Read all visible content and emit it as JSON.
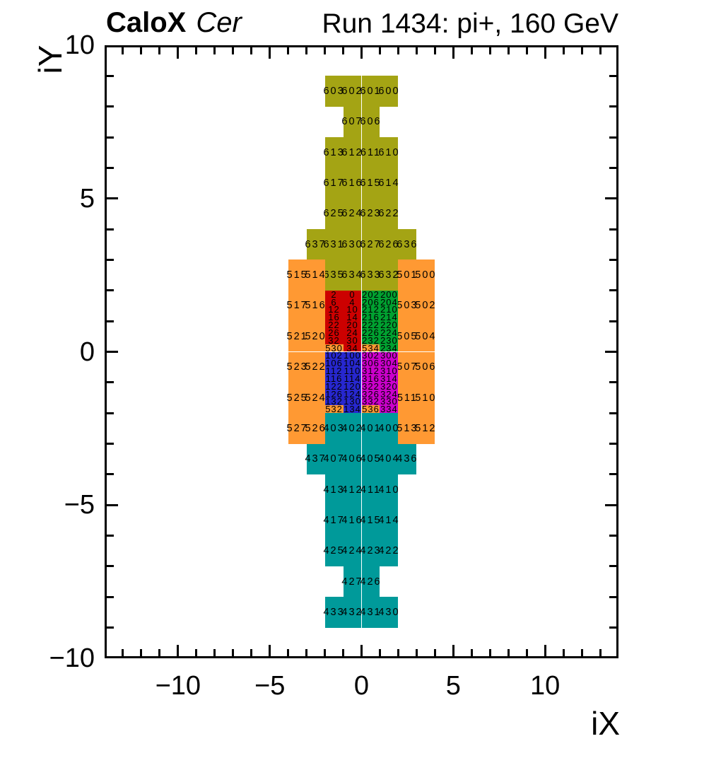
{
  "header": {
    "left_title_bold": "CaloX",
    "left_title_italic": "Cer",
    "right_title": "Run 1434: pi+, 160 GeV"
  },
  "axes": {
    "x": {
      "title": "iX",
      "range": [
        -14,
        14
      ],
      "minor_step": 1,
      "major_step": 5,
      "ticks": [
        {
          "v": -10,
          "t": "−10"
        },
        {
          "v": -5,
          "t": "−5"
        },
        {
          "v": 0,
          "t": "0"
        },
        {
          "v": 5,
          "t": "5"
        },
        {
          "v": 10,
          "t": "10"
        }
      ]
    },
    "y": {
      "title": "iY",
      "range": [
        -10,
        10
      ],
      "minor_step": 1,
      "major_step": 5,
      "ticks": [
        {
          "v": 10,
          "t": "10"
        },
        {
          "v": 5,
          "t": "5"
        },
        {
          "v": 0,
          "t": "0"
        },
        {
          "v": -5,
          "t": "−5"
        },
        {
          "v": -10,
          "t": "−10"
        }
      ]
    }
  },
  "chart_data": {
    "type": "heatmap",
    "title": "Run 1434: pi+, 160 GeV",
    "subtitle": "CaloX Cer detector cell map",
    "xlabel": "iX",
    "ylabel": "iY",
    "xlim": [
      -14,
      14
    ],
    "ylim": [
      -10,
      10
    ],
    "grid": false,
    "colors": {
      "olive": "#a4a414",
      "orange": "#ff9933",
      "red": "#cc0000",
      "green": "#00a130",
      "blue": "#2727cf",
      "magenta": "#cc00cc",
      "teal": "#009a9a"
    },
    "regions": [
      {
        "name": "upper-tail-olive",
        "color": "olive",
        "cell_w": 1,
        "cell_h": 1,
        "rows": [
          {
            "y": 8,
            "cells": [
              [
                "603",
                -2
              ],
              [
                "602",
                -1
              ],
              [
                "601",
                0
              ],
              [
                "600",
                1
              ]
            ]
          },
          {
            "y": 7,
            "cells": [
              [
                "607",
                -1
              ],
              [
                "606",
                0
              ]
            ]
          },
          {
            "y": 6,
            "cells": [
              [
                "613",
                -2
              ],
              [
                "612",
                -1
              ],
              [
                "611",
                0
              ],
              [
                "610",
                1
              ]
            ]
          },
          {
            "y": 5,
            "cells": [
              [
                "617",
                -2
              ],
              [
                "616",
                -1
              ],
              [
                "615",
                0
              ],
              [
                "614",
                1
              ]
            ]
          },
          {
            "y": 4,
            "cells": [
              [
                "625",
                -2
              ],
              [
                "624",
                -1
              ],
              [
                "623",
                0
              ],
              [
                "622",
                1
              ]
            ]
          },
          {
            "y": 3,
            "cells": [
              [
                "637",
                -3
              ],
              [
                "631",
                -2
              ],
              [
                "630",
                -1
              ],
              [
                "627",
                0
              ],
              [
                "626",
                1
              ],
              [
                "636",
                2
              ]
            ]
          },
          {
            "y": 2,
            "cells": [
              [
                "635",
                -2
              ],
              [
                "634",
                -1
              ],
              [
                "633",
                0
              ],
              [
                "632",
                1
              ]
            ]
          }
        ]
      },
      {
        "name": "ring-orange-left",
        "color": "orange",
        "cell_w": 1,
        "cell_h": 1,
        "rows": [
          {
            "y": 2,
            "cells": [
              [
                "515",
                -4
              ],
              [
                "514",
                -3
              ]
            ]
          },
          {
            "y": 1,
            "cells": [
              [
                "517",
                -4
              ],
              [
                "516",
                -3
              ]
            ]
          },
          {
            "y": 0,
            "cells": [
              [
                "521",
                -4
              ],
              [
                "520",
                -3
              ]
            ]
          },
          {
            "y": -1,
            "cells": [
              [
                "523",
                -4
              ],
              [
                "522",
                -3
              ]
            ]
          },
          {
            "y": -2,
            "cells": [
              [
                "525",
                -4
              ],
              [
                "524",
                -3
              ]
            ]
          },
          {
            "y": -3,
            "cells": [
              [
                "527",
                -4
              ],
              [
                "526",
                -3
              ]
            ]
          }
        ]
      },
      {
        "name": "ring-orange-right",
        "color": "orange",
        "cell_w": 1,
        "cell_h": 1,
        "rows": [
          {
            "y": 2,
            "cells": [
              [
                "501",
                2
              ],
              [
                "500",
                3
              ]
            ]
          },
          {
            "y": 1,
            "cells": [
              [
                "503",
                2
              ],
              [
                "502",
                3
              ]
            ]
          },
          {
            "y": 0,
            "cells": [
              [
                "505",
                2
              ],
              [
                "504",
                3
              ]
            ]
          },
          {
            "y": -1,
            "cells": [
              [
                "507",
                2
              ],
              [
                "506",
                3
              ]
            ]
          },
          {
            "y": -2,
            "cells": [
              [
                "511",
                2
              ],
              [
                "510",
                3
              ]
            ]
          },
          {
            "y": -3,
            "cells": [
              [
                "513",
                2
              ],
              [
                "512",
                3
              ]
            ]
          }
        ]
      },
      {
        "name": "core-red",
        "color": "red",
        "cell_w": 1,
        "cell_h": 0.25,
        "rows": [
          {
            "y": 1.75,
            "cells": [
              [
                "2",
                -2
              ],
              [
                "0",
                -1
              ]
            ]
          },
          {
            "y": 1.5,
            "cells": [
              [
                "6",
                -2
              ],
              [
                "4",
                -1
              ]
            ]
          },
          {
            "y": 1.25,
            "cells": [
              [
                "12",
                -2
              ],
              [
                "10",
                -1
              ]
            ]
          },
          {
            "y": 1.0,
            "cells": [
              [
                "16",
                -2
              ],
              [
                "14",
                -1
              ]
            ]
          },
          {
            "y": 0.75,
            "cells": [
              [
                "22",
                -2
              ],
              [
                "20",
                -1
              ]
            ]
          },
          {
            "y": 0.5,
            "cells": [
              [
                "26",
                -2
              ],
              [
                "24",
                -1
              ]
            ]
          },
          {
            "y": 0.25,
            "cells": [
              [
                "32",
                -2
              ],
              [
                "30",
                -1
              ]
            ]
          },
          {
            "y": 0,
            "cells": [
              [
                "530",
                -2,
                "orange"
              ],
              [
                "34",
                -1
              ]
            ]
          }
        ]
      },
      {
        "name": "core-green",
        "color": "green",
        "cell_w": 1,
        "cell_h": 0.25,
        "rows": [
          {
            "y": 1.75,
            "cells": [
              [
                "202",
                0
              ],
              [
                "200",
                1
              ]
            ]
          },
          {
            "y": 1.5,
            "cells": [
              [
                "206",
                0
              ],
              [
                "204",
                1
              ]
            ]
          },
          {
            "y": 1.25,
            "cells": [
              [
                "212",
                0
              ],
              [
                "210",
                1
              ]
            ]
          },
          {
            "y": 1.0,
            "cells": [
              [
                "216",
                0
              ],
              [
                "214",
                1
              ]
            ]
          },
          {
            "y": 0.75,
            "cells": [
              [
                "222",
                0
              ],
              [
                "220",
                1
              ]
            ]
          },
          {
            "y": 0.5,
            "cells": [
              [
                "226",
                0
              ],
              [
                "224",
                1
              ]
            ]
          },
          {
            "y": 0.25,
            "cells": [
              [
                "232",
                0
              ],
              [
                "230",
                1
              ]
            ]
          },
          {
            "y": 0,
            "cells": [
              [
                "534",
                0,
                "orange"
              ],
              [
                "234",
                1
              ]
            ]
          }
        ]
      },
      {
        "name": "core-blue",
        "color": "blue",
        "cell_w": 1,
        "cell_h": 0.25,
        "rows": [
          {
            "y": -0.25,
            "cells": [
              [
                "102",
                -2
              ],
              [
                "100",
                -1
              ]
            ]
          },
          {
            "y": -0.5,
            "cells": [
              [
                "106",
                -2
              ],
              [
                "104",
                -1
              ]
            ]
          },
          {
            "y": -0.75,
            "cells": [
              [
                "112",
                -2
              ],
              [
                "110",
                -1
              ]
            ]
          },
          {
            "y": -1.0,
            "cells": [
              [
                "116",
                -2
              ],
              [
                "114",
                -1
              ]
            ]
          },
          {
            "y": -1.25,
            "cells": [
              [
                "122",
                -2
              ],
              [
                "120",
                -1
              ]
            ]
          },
          {
            "y": -1.5,
            "cells": [
              [
                "126",
                -2
              ],
              [
                "124",
                -1
              ]
            ]
          },
          {
            "y": -1.75,
            "cells": [
              [
                "132",
                -2
              ],
              [
                "130",
                -1
              ]
            ]
          },
          {
            "y": -2,
            "cells": [
              [
                "532",
                -2,
                "orange"
              ],
              [
                "134",
                -1
              ]
            ]
          }
        ]
      },
      {
        "name": "core-magenta",
        "color": "magenta",
        "cell_w": 1,
        "cell_h": 0.25,
        "rows": [
          {
            "y": -0.25,
            "cells": [
              [
                "302",
                0
              ],
              [
                "300",
                1
              ]
            ]
          },
          {
            "y": -0.5,
            "cells": [
              [
                "306",
                0
              ],
              [
                "304",
                1
              ]
            ]
          },
          {
            "y": -0.75,
            "cells": [
              [
                "312",
                0
              ],
              [
                "310",
                1
              ]
            ]
          },
          {
            "y": -1.0,
            "cells": [
              [
                "316",
                0
              ],
              [
                "314",
                1
              ]
            ]
          },
          {
            "y": -1.25,
            "cells": [
              [
                "322",
                0
              ],
              [
                "320",
                1
              ]
            ]
          },
          {
            "y": -1.5,
            "cells": [
              [
                "326",
                0
              ],
              [
                "324",
                1
              ]
            ]
          },
          {
            "y": -1.75,
            "cells": [
              [
                "332",
                0
              ],
              [
                "330",
                1
              ]
            ]
          },
          {
            "y": -2,
            "cells": [
              [
                "536",
                0,
                "orange"
              ],
              [
                "334",
                1
              ]
            ]
          }
        ]
      },
      {
        "name": "lower-tail-teal",
        "color": "teal",
        "cell_w": 1,
        "cell_h": 1,
        "rows": [
          {
            "y": -3,
            "cells": [
              [
                "403",
                -2
              ],
              [
                "402",
                -1
              ],
              [
                "401",
                0
              ],
              [
                "400",
                1
              ]
            ]
          },
          {
            "y": -4,
            "cells": [
              [
                "437",
                -3
              ],
              [
                "407",
                -2
              ],
              [
                "406",
                -1
              ],
              [
                "405",
                0
              ],
              [
                "404",
                1
              ],
              [
                "436",
                2
              ]
            ]
          },
          {
            "y": -5,
            "cells": [
              [
                "413",
                -2
              ],
              [
                "412",
                -1
              ],
              [
                "411",
                0
              ],
              [
                "410",
                1
              ]
            ]
          },
          {
            "y": -6,
            "cells": [
              [
                "417",
                -2
              ],
              [
                "416",
                -1
              ],
              [
                "415",
                0
              ],
              [
                "414",
                1
              ]
            ]
          },
          {
            "y": -7,
            "cells": [
              [
                "425",
                -2
              ],
              [
                "424",
                -1
              ],
              [
                "423",
                0
              ],
              [
                "422",
                1
              ]
            ]
          },
          {
            "y": -8,
            "cells": [
              [
                "427",
                -1
              ],
              [
                "426",
                0
              ]
            ]
          },
          {
            "y": -9,
            "cells": [
              [
                "433",
                -2
              ],
              [
                "432",
                -1
              ],
              [
                "431",
                0
              ],
              [
                "430",
                1
              ]
            ]
          }
        ]
      }
    ]
  }
}
